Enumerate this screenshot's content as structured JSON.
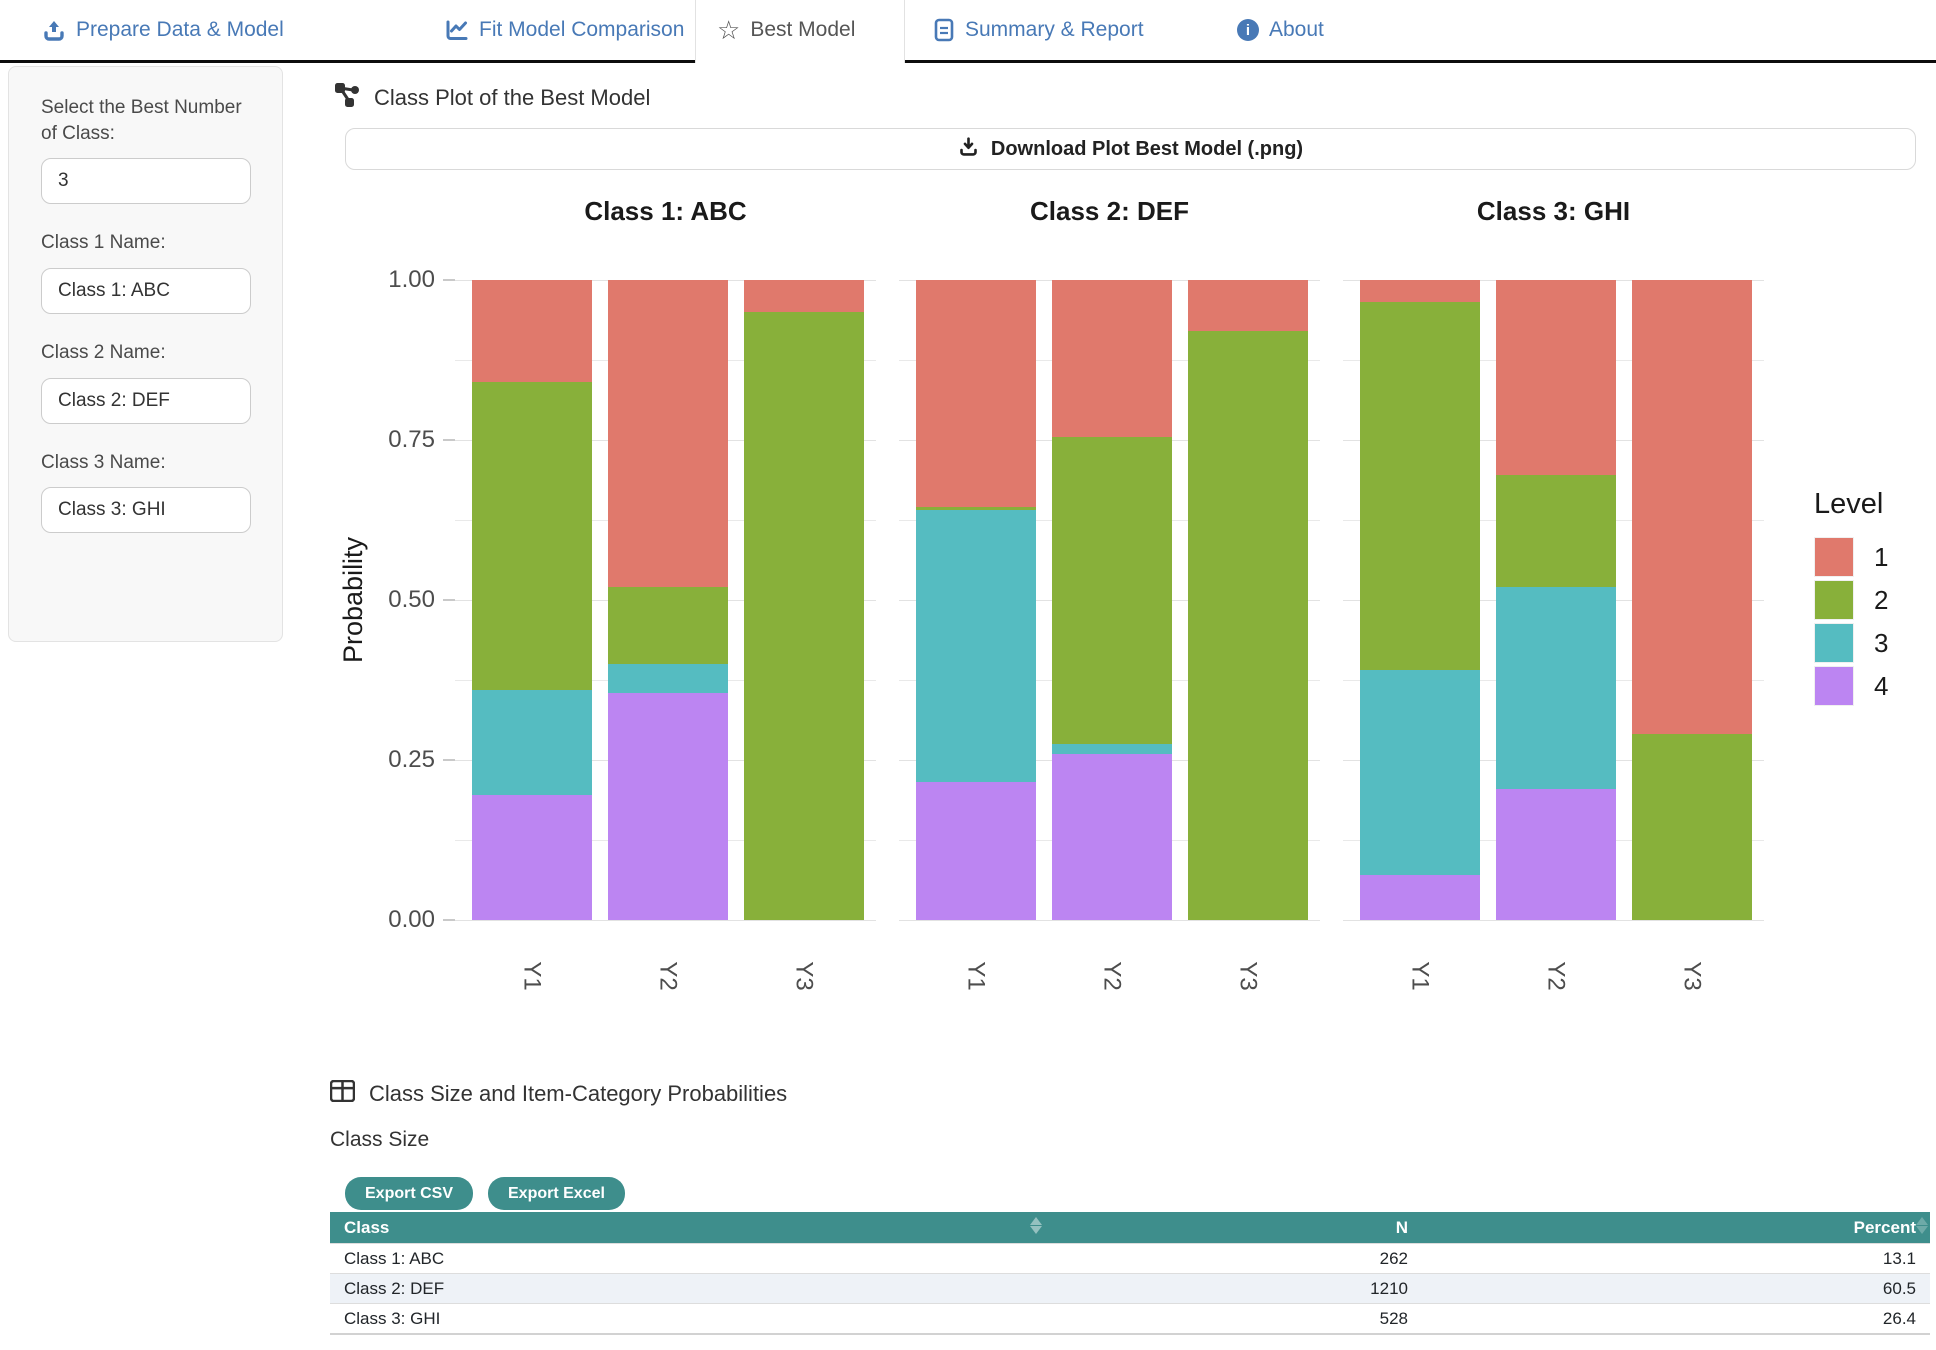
{
  "tabs": [
    {
      "label": "Prepare Data & Model",
      "icon": "upload-icon",
      "active": false
    },
    {
      "label": "Fit Model Comparison",
      "icon": "chart-line-icon",
      "active": false
    },
    {
      "label": "Best Model",
      "icon": "star-icon",
      "active": true
    },
    {
      "label": "Summary & Report",
      "icon": "file-icon",
      "active": false
    },
    {
      "label": "About",
      "icon": "info-icon",
      "active": false
    }
  ],
  "sidebar": {
    "class_count_label": "Select the Best Number of Class:",
    "class_count_value": "3",
    "class1_label": "Class 1 Name:",
    "class1_value": "Class 1: ABC",
    "class2_label": "Class 2 Name:",
    "class2_value": "Class 2: DEF",
    "class3_label": "Class 3 Name:",
    "class3_value": "Class 3: GHI"
  },
  "plot_section": {
    "title": "Class Plot of the Best Model",
    "download_label": "Download Plot Best Model (.png)"
  },
  "chart_data": {
    "type": "bar",
    "stacked": true,
    "ylabel": "Probability",
    "ylim": [
      0,
      1
    ],
    "yticks": [
      "1.00",
      "0.75",
      "0.50",
      "0.25",
      "0.00"
    ],
    "grid": true,
    "legend_title": "Level",
    "legend_position": "right",
    "levels": [
      {
        "label": "1",
        "color": "#E0796C"
      },
      {
        "label": "2",
        "color": "#88B03A"
      },
      {
        "label": "3",
        "color": "#55BCC1"
      },
      {
        "label": "4",
        "color": "#BC85F2"
      }
    ],
    "facets": [
      {
        "title": "Class 1: ABC",
        "categories": [
          "Y1",
          "Y2",
          "Y3"
        ],
        "values_by_level_1_to_4": [
          [
            0.16,
            0.48,
            0.165,
            0.195
          ],
          [
            0.48,
            0.12,
            0.045,
            0.355
          ],
          [
            0.05,
            0.95,
            0.0,
            0.0
          ]
        ]
      },
      {
        "title": "Class 2: DEF",
        "categories": [
          "Y1",
          "Y2",
          "Y3"
        ],
        "values_by_level_1_to_4": [
          [
            0.355,
            0.005,
            0.425,
            0.215
          ],
          [
            0.245,
            0.48,
            0.015,
            0.26
          ],
          [
            0.08,
            0.92,
            0.0,
            0.0
          ]
        ]
      },
      {
        "title": "Class 3: GHI",
        "categories": [
          "Y1",
          "Y2",
          "Y3"
        ],
        "values_by_level_1_to_4": [
          [
            0.035,
            0.575,
            0.32,
            0.07
          ],
          [
            0.305,
            0.175,
            0.315,
            0.205
          ],
          [
            0.71,
            0.29,
            0.0,
            0.0
          ]
        ]
      }
    ]
  },
  "table_section": {
    "heading": "Class Size and Item-Category Probabilities",
    "subheading": "Class Size",
    "export_csv_label": "Export CSV",
    "export_excel_label": "Export Excel",
    "columns": [
      "Class",
      "N",
      "Percent"
    ],
    "rows": [
      {
        "class": "Class 1: ABC",
        "n": "262",
        "percent": "13.1"
      },
      {
        "class": "Class 2: DEF",
        "n": "1210",
        "percent": "60.5"
      },
      {
        "class": "Class 3: GHI",
        "n": "528",
        "percent": "26.4"
      }
    ]
  },
  "colors": {
    "tab_blue": "#4879B6",
    "table_header_teal": "#3E8E8C",
    "active_tab_text": "#555555",
    "stripe_row": "#EEF2F7"
  }
}
